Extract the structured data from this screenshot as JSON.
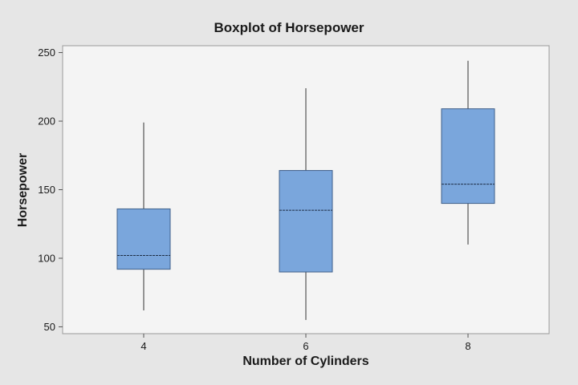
{
  "chart_data": {
    "type": "boxplot",
    "title": "Boxplot of Horsepower",
    "xlabel": "Number of Cylinders",
    "ylabel": "Horsepower",
    "ylim": [
      45,
      255
    ],
    "yticks": [
      50,
      100,
      150,
      200,
      250
    ],
    "categories": [
      "4",
      "6",
      "8"
    ],
    "boxes": [
      {
        "category": "4",
        "min": 62,
        "q1": 92,
        "median": 102,
        "q3": 136,
        "max": 199
      },
      {
        "category": "6",
        "min": 55,
        "q1": 90,
        "median": 135,
        "q3": 164,
        "max": 224
      },
      {
        "category": "8",
        "min": 110,
        "q1": 140,
        "median": 154,
        "q3": 209,
        "max": 244
      }
    ],
    "colors": {
      "box_fill": "#7aa6dc",
      "box_stroke": "#3f5f8a",
      "whisker": "#333333",
      "plot_background": "#f4f4f4",
      "figure_background": "#e6e6e6"
    },
    "grid": false,
    "legend": "none"
  }
}
